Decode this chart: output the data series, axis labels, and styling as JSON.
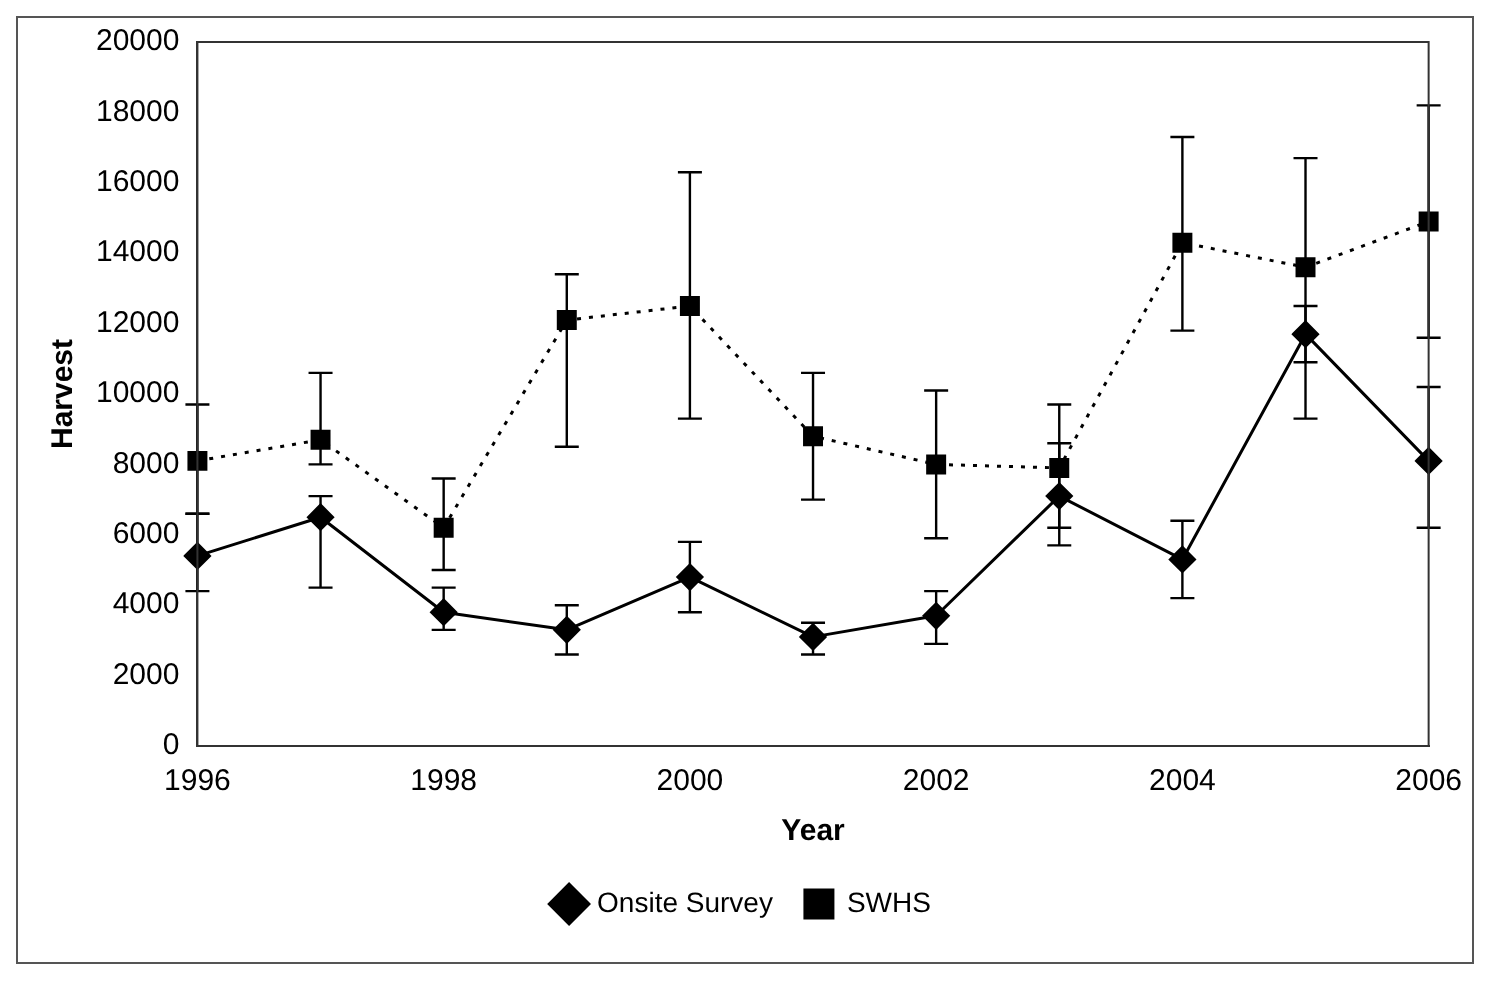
{
  "chart_data": {
    "type": "line",
    "xlabel": "Year",
    "ylabel": "Harvest",
    "categories": [
      "1996",
      null,
      "1998",
      null,
      "2000",
      null,
      "2002",
      null,
      "2004",
      null,
      "2006"
    ],
    "series": [
      {
        "name": "Onsite Survey",
        "color": "#000000",
        "marker": "diamond",
        "line_style": "solid",
        "values": [
          5400,
          6500,
          3800,
          3300,
          4800,
          3100,
          3700,
          7100,
          5300,
          11700,
          8100
        ],
        "errors": [
          [
            4400,
            6600
          ],
          [
            4500,
            7100
          ],
          [
            3300,
            4500
          ],
          [
            2600,
            4000
          ],
          [
            3800,
            5800
          ],
          [
            2600,
            3500
          ],
          [
            2900,
            4400
          ],
          [
            5700,
            8600
          ],
          [
            4200,
            6400
          ],
          [
            10900,
            12500
          ],
          [
            6200,
            10200
          ]
        ]
      },
      {
        "name": "SWHS",
        "color": "#000000",
        "marker": "square",
        "line_style": "dotted",
        "values": [
          8100,
          8700,
          6200,
          12100,
          12500,
          8800,
          8000,
          7900,
          14300,
          13600,
          14900
        ],
        "errors": [
          [
            6600,
            9700
          ],
          [
            8000,
            10600
          ],
          [
            5000,
            7600
          ],
          [
            8500,
            13400
          ],
          [
            9300,
            16300
          ],
          [
            7000,
            10600
          ],
          [
            5900,
            10100
          ],
          [
            6200,
            9700
          ],
          [
            11800,
            17300
          ],
          [
            9300,
            16700
          ],
          [
            11600,
            18200
          ]
        ]
      }
    ],
    "ylim": [
      0,
      20000
    ],
    "yticks": [
      0,
      2000,
      4000,
      6000,
      8000,
      10000,
      12000,
      14000,
      16000,
      18000,
      20000
    ],
    "grid": false,
    "legend": "bottom"
  }
}
